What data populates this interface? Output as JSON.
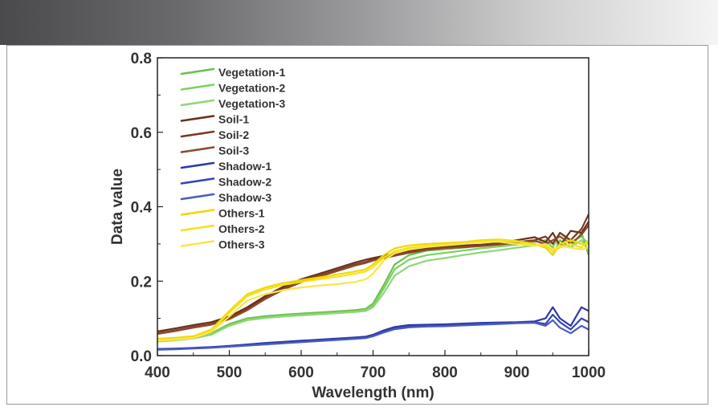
{
  "chart_data": {
    "type": "line",
    "title": "",
    "xlabel": "Wavelength (nm)",
    "ylabel": "Data value",
    "xlim": [
      400,
      1000
    ],
    "ylim": [
      0.0,
      0.8
    ],
    "xticks": [
      400,
      500,
      600,
      700,
      800,
      900,
      1000
    ],
    "yticks": [
      0.0,
      0.2,
      0.4,
      0.6,
      0.8
    ],
    "xtick_labels": [
      "400",
      "500",
      "600",
      "700",
      "800",
      "900",
      "1000"
    ],
    "ytick_labels": [
      "0.0",
      "0.2",
      "0.4",
      "0.6",
      "0.8"
    ],
    "legend_position": "top-left",
    "x": [
      400,
      425,
      450,
      475,
      500,
      525,
      550,
      575,
      600,
      625,
      650,
      675,
      690,
      700,
      715,
      730,
      750,
      775,
      800,
      825,
      850,
      875,
      900,
      925,
      940,
      950,
      960,
      975,
      990,
      1000
    ],
    "series": [
      {
        "name": "Vegetation-1",
        "color": "#6cc04a",
        "values": [
          0.042,
          0.045,
          0.05,
          0.06,
          0.085,
          0.1,
          0.106,
          0.11,
          0.113,
          0.116,
          0.119,
          0.122,
          0.126,
          0.14,
          0.19,
          0.245,
          0.27,
          0.282,
          0.286,
          0.29,
          0.295,
          0.3,
          0.305,
          0.3,
          0.29,
          0.27,
          0.31,
          0.29,
          0.33,
          0.27
        ]
      },
      {
        "name": "Vegetation-2",
        "color": "#7dd163",
        "values": [
          0.04,
          0.043,
          0.048,
          0.058,
          0.082,
          0.097,
          0.103,
          0.107,
          0.11,
          0.113,
          0.116,
          0.119,
          0.123,
          0.135,
          0.18,
          0.232,
          0.258,
          0.27,
          0.276,
          0.282,
          0.288,
          0.293,
          0.298,
          0.306,
          0.31,
          0.29,
          0.33,
          0.305,
          0.32,
          0.3
        ]
      },
      {
        "name": "Vegetation-3",
        "color": "#8fd67a",
        "values": [
          0.038,
          0.041,
          0.046,
          0.056,
          0.08,
          0.095,
          0.101,
          0.105,
          0.108,
          0.111,
          0.114,
          0.117,
          0.12,
          0.13,
          0.168,
          0.215,
          0.24,
          0.255,
          0.262,
          0.27,
          0.277,
          0.283,
          0.29,
          0.296,
          0.3,
          0.305,
          0.3,
          0.29,
          0.31,
          0.28
        ]
      },
      {
        "name": "Soil-1",
        "color": "#6b2f1a",
        "values": [
          0.065,
          0.073,
          0.082,
          0.09,
          0.105,
          0.13,
          0.16,
          0.185,
          0.205,
          0.22,
          0.235,
          0.25,
          0.258,
          0.262,
          0.268,
          0.275,
          0.282,
          0.29,
          0.295,
          0.296,
          0.298,
          0.302,
          0.31,
          0.318,
          0.305,
          0.33,
          0.295,
          0.335,
          0.33,
          0.36
        ]
      },
      {
        "name": "Soil-2",
        "color": "#7a3a22",
        "values": [
          0.06,
          0.068,
          0.077,
          0.085,
          0.1,
          0.125,
          0.155,
          0.18,
          0.2,
          0.215,
          0.23,
          0.245,
          0.252,
          0.258,
          0.266,
          0.272,
          0.28,
          0.287,
          0.292,
          0.293,
          0.296,
          0.3,
          0.305,
          0.31,
          0.32,
          0.3,
          0.33,
          0.31,
          0.34,
          0.38
        ]
      },
      {
        "name": "Soil-3",
        "color": "#8b4a30",
        "values": [
          0.058,
          0.066,
          0.075,
          0.083,
          0.098,
          0.122,
          0.152,
          0.177,
          0.197,
          0.212,
          0.227,
          0.242,
          0.249,
          0.255,
          0.262,
          0.268,
          0.276,
          0.284,
          0.289,
          0.291,
          0.294,
          0.298,
          0.303,
          0.308,
          0.3,
          0.31,
          0.32,
          0.3,
          0.325,
          0.35
        ]
      },
      {
        "name": "Shadow-1",
        "color": "#2b3aa6",
        "values": [
          0.018,
          0.019,
          0.021,
          0.023,
          0.026,
          0.03,
          0.034,
          0.037,
          0.04,
          0.043,
          0.046,
          0.049,
          0.051,
          0.056,
          0.068,
          0.077,
          0.082,
          0.083,
          0.084,
          0.086,
          0.088,
          0.089,
          0.09,
          0.092,
          0.1,
          0.13,
          0.1,
          0.08,
          0.13,
          0.12
        ]
      },
      {
        "name": "Shadow-2",
        "color": "#3546b0",
        "values": [
          0.017,
          0.018,
          0.02,
          0.022,
          0.025,
          0.028,
          0.031,
          0.034,
          0.037,
          0.04,
          0.043,
          0.046,
          0.048,
          0.053,
          0.064,
          0.073,
          0.078,
          0.08,
          0.081,
          0.083,
          0.085,
          0.087,
          0.088,
          0.09,
          0.085,
          0.11,
          0.09,
          0.07,
          0.1,
          0.09
        ]
      },
      {
        "name": "Shadow-3",
        "color": "#4a5cc0",
        "values": [
          0.016,
          0.017,
          0.019,
          0.021,
          0.024,
          0.027,
          0.03,
          0.033,
          0.036,
          0.039,
          0.042,
          0.045,
          0.047,
          0.052,
          0.062,
          0.071,
          0.076,
          0.078,
          0.079,
          0.081,
          0.083,
          0.085,
          0.087,
          0.088,
          0.08,
          0.095,
          0.075,
          0.06,
          0.08,
          0.07
        ]
      },
      {
        "name": "Others-1",
        "color": "#f0d800",
        "values": [
          0.045,
          0.048,
          0.052,
          0.07,
          0.12,
          0.165,
          0.183,
          0.195,
          0.203,
          0.21,
          0.218,
          0.226,
          0.232,
          0.245,
          0.27,
          0.288,
          0.296,
          0.3,
          0.302,
          0.305,
          0.31,
          0.312,
          0.308,
          0.3,
          0.29,
          0.27,
          0.3,
          0.31,
          0.3,
          0.3
        ]
      },
      {
        "name": "Others-2",
        "color": "#f5e21a",
        "values": [
          0.042,
          0.045,
          0.049,
          0.067,
          0.115,
          0.16,
          0.178,
          0.19,
          0.198,
          0.205,
          0.212,
          0.22,
          0.226,
          0.238,
          0.263,
          0.28,
          0.29,
          0.295,
          0.298,
          0.302,
          0.307,
          0.31,
          0.306,
          0.298,
          0.295,
          0.28,
          0.29,
          0.3,
          0.29,
          0.31
        ]
      },
      {
        "name": "Others-3",
        "color": "#f7e64a",
        "values": [
          0.04,
          0.043,
          0.047,
          0.064,
          0.105,
          0.148,
          0.165,
          0.176,
          0.183,
          0.188,
          0.192,
          0.198,
          0.205,
          0.22,
          0.255,
          0.275,
          0.285,
          0.292,
          0.296,
          0.3,
          0.304,
          0.306,
          0.3,
          0.295,
          0.3,
          0.285,
          0.295,
          0.29,
          0.285,
          0.29
        ]
      }
    ]
  }
}
